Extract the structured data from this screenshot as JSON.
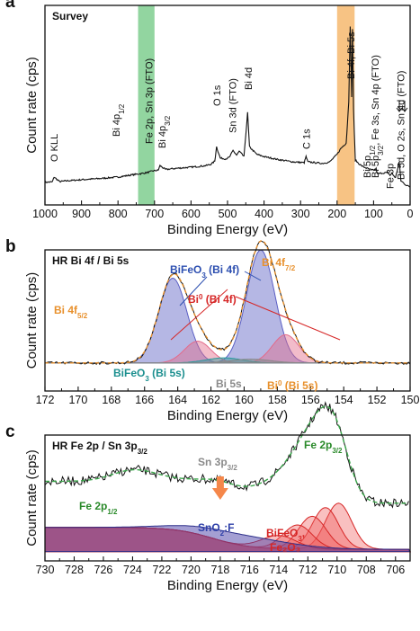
{
  "chart_data": [
    {
      "panel": "a",
      "type": "line",
      "title": "Survey",
      "xlabel": "Binding Energy (eV)",
      "ylabel": "Count rate (cps)",
      "xlim": [
        1000,
        0
      ],
      "xticks": [
        1000,
        900,
        800,
        700,
        600,
        500,
        400,
        300,
        200,
        100,
        0
      ],
      "highlight_bands": [
        {
          "x_range": [
            745,
            700
          ],
          "color": "#7fce8f"
        },
        {
          "x_range": [
            200,
            152
          ],
          "color": "#f6b86f"
        }
      ],
      "series": [
        {
          "x": [
            1000,
            980,
            975,
            960,
            940,
            900,
            850,
            800,
            760,
            730,
            715,
            705,
            690,
            685,
            670,
            640,
            600,
            560,
            545,
            535,
            530,
            520,
            505,
            495,
            485,
            475,
            468,
            462,
            455,
            445,
            440,
            420,
            400,
            360,
            320,
            290,
            285,
            280,
            260,
            240,
            220,
            210,
            200,
            190,
            175,
            168,
            164,
            160,
            158,
            155,
            150,
            140,
            130,
            120,
            110,
            100,
            93,
            90,
            80,
            60,
            55,
            50,
            40,
            30,
            25,
            20,
            10,
            0
          ],
          "y": [
            36,
            37,
            50,
            38,
            40,
            43,
            46,
            50,
            56,
            60,
            63,
            66,
            68,
            80,
            70,
            73,
            76,
            80,
            84,
            92,
            130,
            100,
            98,
            102,
            120,
            108,
            118,
            112,
            104,
            220,
            130,
            110,
            104,
            96,
            90,
            88,
            104,
            90,
            88,
            86,
            90,
            100,
            110,
            125,
            140,
            250,
            450,
            260,
            440,
            230,
            95,
            85,
            78,
            74,
            70,
            68,
            72,
            58,
            60,
            62,
            54,
            60,
            48,
            90,
            40,
            36,
            28,
            24
          ]
        }
      ],
      "annotations": [
        {
          "text": "O KLL",
          "x": 975
        },
        {
          "text": "Bi 4p",
          "sub": "1/2",
          "x": 806
        },
        {
          "text": "Fe 2p, Sn 3p (FTO)",
          "x": 715
        },
        {
          "text": "Bi 4p",
          "sub": "3/2",
          "x": 680
        },
        {
          "text": "O 1s",
          "x": 530
        },
        {
          "text": "Sn 3d (FTO)",
          "x": 487
        },
        {
          "text": "Bi 4d",
          "x": 443
        },
        {
          "text": "C 1s",
          "x": 285
        },
        {
          "text": "Bi 4f, Bi 5s",
          "x": 162
        },
        {
          "text": "Bi 5p",
          "sub": "1/2",
          "x": 118
        },
        {
          "text": "Bi 5p",
          "sub": "3/2",
          "text2": ", Fe 3s, Sn 4p (FTO)",
          "x": 96
        },
        {
          "text": "Fe 3p",
          "x": 56
        },
        {
          "text": "Bi 5d, O 2s, Sn 4d (FTO)",
          "x": 26
        }
      ]
    },
    {
      "panel": "b",
      "type": "line",
      "title": "HR Bi 4f / Bi 5s",
      "xlabel": "Binding Energy (eV)",
      "ylabel": "Count rate (cps)",
      "xlim": [
        172,
        150
      ],
      "xticks": [
        172,
        170,
        168,
        166,
        164,
        162,
        160,
        158,
        156,
        154,
        152,
        150
      ],
      "baseline_cps_fraction": 0.19,
      "components": [
        {
          "name": "BiFeO3 (Bi 4f)",
          "center": 164.3,
          "sigma": 0.85,
          "height": 0.66,
          "color": "#5b5fc4"
        },
        {
          "name": "BiFeO3 (Bi 4f)",
          "center": 159.0,
          "sigma": 0.85,
          "height": 0.88,
          "color": "#5b5fc4"
        },
        {
          "name": "Bi0 (Bi 4f)",
          "center": 162.8,
          "sigma": 0.8,
          "height": 0.17,
          "color": "#e36a8a"
        },
        {
          "name": "Bi0 (Bi 4f)",
          "center": 157.5,
          "sigma": 0.8,
          "height": 0.22,
          "color": "#e36a8a"
        },
        {
          "name": "BiFeO3 (Bi 5s)",
          "center": 161.2,
          "sigma": 1.1,
          "height": 0.04,
          "color": "#2a9a9a"
        },
        {
          "name": "Bi 5s",
          "center": 159.6,
          "sigma": 1.2,
          "height": 0.03,
          "color": "#888888"
        }
      ],
      "labels": [
        {
          "text": "Bi 4f",
          "sub": "5/2",
          "color": "#e8902c"
        },
        {
          "text": "Bi 4f",
          "sub": "7/2",
          "color": "#e8902c"
        },
        {
          "text": "BiFeO",
          "sub": "3",
          "text2": " (Bi 4f)",
          "color": "#2d4fb0"
        },
        {
          "text": "Bi",
          "sup": "0",
          "text2": " (Bi 4f)",
          "color": "#d62626"
        },
        {
          "text": "BiFeO",
          "sub": "3",
          "text2": " (Bi 5s)",
          "color": "#1c8f8f"
        },
        {
          "text": "Bi 5s",
          "color": "#8a8a8a"
        },
        {
          "text": "Bi",
          "sup": "0",
          "text2": " (Bi 5s)",
          "color": "#e8902c"
        }
      ]
    },
    {
      "panel": "c",
      "type": "line",
      "title": "HR Fe 2p / Sn 3p",
      "title_sub": "3/2",
      "xlabel": "Binding Energy (eV)",
      "ylabel": "Count rate (cps)",
      "xlim": [
        730,
        705
      ],
      "xticks": [
        730,
        728,
        726,
        724,
        722,
        720,
        718,
        716,
        714,
        712,
        710,
        708,
        706
      ],
      "components": [
        {
          "name": "BiFeO3, Fe2O3",
          "center": 709.9,
          "sigma": 0.9,
          "height": 0.42
        },
        {
          "name": "BiFeO3, Fe2O3",
          "center": 710.8,
          "sigma": 0.9,
          "height": 0.38
        },
        {
          "name": "BiFeO3, Fe2O3",
          "center": 711.7,
          "sigma": 0.95,
          "height": 0.3
        },
        {
          "name": "BiFeO3, Fe2O3",
          "center": 712.7,
          "sigma": 1.0,
          "height": 0.22
        },
        {
          "name": "BiFeO3, Fe2O3",
          "center": 714.0,
          "sigma": 1.2,
          "height": 0.12
        },
        {
          "name": "SnO2:F",
          "center": 716.8,
          "sigma": 3.2,
          "height": 0.1
        }
      ],
      "labels": [
        {
          "text": "Sn 3p",
          "sub": "3/2",
          "color": "#8a8a8a"
        },
        {
          "text": "Fe 2p",
          "sub": "3/2",
          "color": "#2a8a2a"
        },
        {
          "text": "Fe 2p",
          "sub": "1/2",
          "color": "#2a8a2a"
        },
        {
          "text": "SnO",
          "sub": "2",
          "text2": ":F",
          "color": "#2d3fa8"
        },
        {
          "text": "BiFeO",
          "sub": "3",
          "text2": ",",
          "color": "#d62626"
        },
        {
          "text": "Fe₂O₃",
          "color": "#d62626"
        }
      ]
    }
  ]
}
